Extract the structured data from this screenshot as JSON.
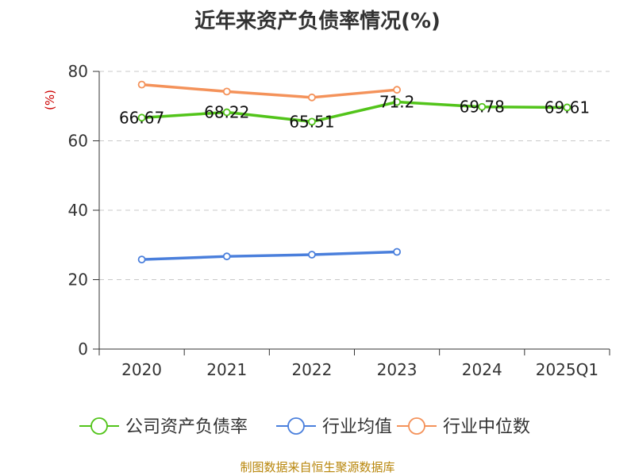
{
  "chart_data": {
    "type": "line",
    "title": "近年来资产负债率情况(%)",
    "ylabel": "(%)",
    "categories": [
      "2020",
      "2021",
      "2022",
      "2023",
      "2024",
      "2025Q1"
    ],
    "ylim": [
      0,
      80
    ],
    "yticks": [
      0,
      20,
      40,
      60,
      80
    ],
    "grid": true,
    "legend_position": "bottom",
    "series": [
      {
        "name": "公司资产负债率",
        "color": "#52c41a",
        "values": [
          66.67,
          68.22,
          65.51,
          71.2,
          69.78,
          69.61
        ],
        "labels": [
          "66.67",
          "68.22",
          "65.51",
          "71.2",
          "69.78",
          "69.61"
        ]
      },
      {
        "name": "行业均值",
        "color": "#4a7fdc",
        "values": [
          25.8,
          26.7,
          27.2,
          28.0,
          null,
          null
        ],
        "labels": []
      },
      {
        "name": "行业中位数",
        "color": "#f4925a",
        "values": [
          76.2,
          74.2,
          72.5,
          74.7,
          null,
          null
        ],
        "labels": []
      }
    ],
    "source": "制图数据来自恒生聚源数据库"
  }
}
